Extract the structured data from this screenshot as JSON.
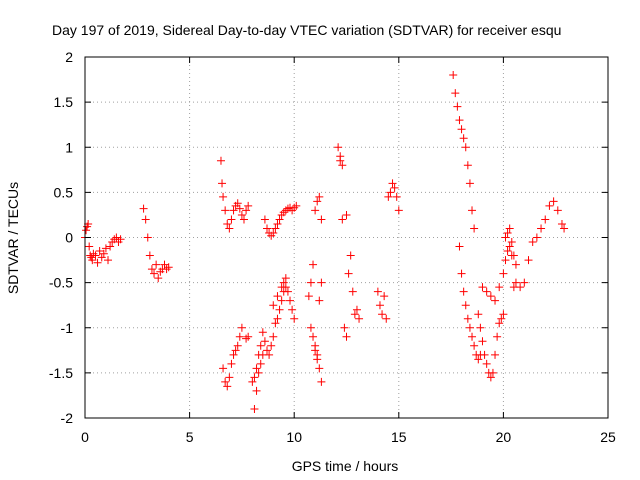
{
  "chart_data": {
    "type": "scatter",
    "title": "Day 197 of 2019, Sidereal Day-to-day VTEC variation (SDTVAR) for receiver esqu",
    "xlabel": "GPS time / hours",
    "ylabel": "SDTVAR / TECUs",
    "xlim": [
      0,
      25
    ],
    "ylim": [
      -2,
      2
    ],
    "xticks": [
      0,
      5,
      10,
      15,
      20,
      25
    ],
    "yticks": [
      -2,
      -1.5,
      -1,
      -0.5,
      0,
      0.5,
      1,
      1.5,
      2
    ],
    "xtick_labels": [
      "0",
      "5",
      "10",
      "15",
      "20",
      "25"
    ],
    "ytick_labels": [
      "-2",
      "-1.5",
      "-1",
      "-0.5",
      "0",
      "0.5",
      "1",
      "1.5",
      "2"
    ],
    "grid": true,
    "marker": "+",
    "color": "#ff0000",
    "series": [
      {
        "name": "SDTVAR",
        "x": [
          0.0,
          0.05,
          0.1,
          0.15,
          0.2,
          0.25,
          0.3,
          0.35,
          0.4,
          0.5,
          0.6,
          0.7,
          0.8,
          0.9,
          1.0,
          1.1,
          1.2,
          1.3,
          1.4,
          1.5,
          1.6,
          1.7,
          2.8,
          2.9,
          3.0,
          3.1,
          3.2,
          3.3,
          3.4,
          3.5,
          3.6,
          3.7,
          3.8,
          3.9,
          4.0,
          6.5,
          6.55,
          6.6,
          6.7,
          6.8,
          6.9,
          7.0,
          7.1,
          7.2,
          7.3,
          7.4,
          7.5,
          7.6,
          7.7,
          7.8,
          6.6,
          6.7,
          6.8,
          6.9,
          7.0,
          7.1,
          7.2,
          7.3,
          7.4,
          7.5,
          7.7,
          7.8,
          8.1,
          8.2,
          8.3,
          8.4,
          8.5,
          8.6,
          8.7,
          8.8,
          8.9,
          9.0,
          9.1,
          9.2,
          9.3,
          9.4,
          9.5,
          9.6,
          9.7,
          9.8,
          9.9,
          10.0,
          10.1,
          8.0,
          8.1,
          8.2,
          8.3,
          8.4,
          8.5,
          8.6,
          8.7,
          8.8,
          8.9,
          9.0,
          9.1,
          9.2,
          9.3,
          9.4,
          9.5,
          9.6,
          9.7,
          9.8,
          9.9,
          10.0,
          9.0,
          9.2,
          9.4,
          9.5,
          9.6,
          10.7,
          10.8,
          10.9,
          11.0,
          11.1,
          11.2,
          11.3,
          11.0,
          11.1,
          11.2,
          11.3,
          10.8,
          10.9,
          11.0,
          11.1,
          11.2,
          11.3,
          12.1,
          12.2,
          12.3,
          12.4,
          12.5,
          12.6,
          12.7,
          12.8,
          12.9,
          13.0,
          13.1,
          12.2,
          12.3,
          12.5,
          14.0,
          14.1,
          14.2,
          14.3,
          14.4,
          14.5,
          14.6,
          14.7,
          14.8,
          14.9,
          15.0,
          17.6,
          17.7,
          17.8,
          17.9,
          18.0,
          18.1,
          18.2,
          18.3,
          18.4,
          18.5,
          18.6,
          18.8,
          18.9,
          19.0,
          19.1,
          19.2,
          19.3,
          19.4,
          19.5,
          19.6,
          19.7,
          19.8,
          19.9,
          20.0,
          17.9,
          18.0,
          18.1,
          18.2,
          18.3,
          18.4,
          18.5,
          18.6,
          18.7,
          18.8,
          18.9,
          19.0,
          19.2,
          19.4,
          19.6,
          19.8,
          20.0,
          20.1,
          20.2,
          20.3,
          20.4,
          20.5,
          20.6,
          20.8,
          21.0,
          21.2,
          21.4,
          21.6,
          21.8,
          22.0,
          22.2,
          22.4,
          22.6,
          22.8,
          22.9,
          20.1,
          20.2,
          20.3,
          20.4,
          20.5,
          20.6
        ],
        "y": [
          0.0,
          0.08,
          0.12,
          0.15,
          -0.1,
          -0.2,
          -0.22,
          -0.25,
          -0.18,
          -0.2,
          -0.28,
          -0.15,
          -0.22,
          -0.18,
          -0.12,
          -0.25,
          -0.1,
          -0.05,
          -0.02,
          0.0,
          -0.05,
          -0.02,
          0.32,
          0.2,
          0.0,
          -0.2,
          -0.35,
          -0.4,
          -0.3,
          -0.45,
          -0.38,
          -0.35,
          -0.3,
          -0.35,
          -0.33,
          0.85,
          0.6,
          0.45,
          0.3,
          0.15,
          0.1,
          0.2,
          0.3,
          0.35,
          0.38,
          0.32,
          0.25,
          0.2,
          0.3,
          0.35,
          -1.45,
          -1.6,
          -1.65,
          -1.55,
          -1.4,
          -1.3,
          -1.25,
          -1.2,
          -1.1,
          -1.0,
          -1.12,
          -1.1,
          -1.9,
          -1.7,
          -1.5,
          -1.4,
          -1.3,
          0.2,
          0.1,
          0.05,
          0.02,
          0.05,
          0.1,
          0.15,
          0.2,
          0.25,
          0.28,
          0.3,
          0.32,
          0.33,
          0.3,
          0.33,
          0.35,
          -1.6,
          -1.55,
          -1.45,
          -1.3,
          -1.2,
          -1.05,
          -1.15,
          -1.25,
          -1.3,
          -1.2,
          -1.1,
          -0.95,
          -0.9,
          -0.8,
          -0.7,
          -0.6,
          -0.55,
          -0.6,
          -0.7,
          -0.8,
          -0.9,
          -0.75,
          -0.65,
          -0.55,
          -0.5,
          -0.45,
          -0.65,
          -0.5,
          -0.3,
          0.3,
          0.4,
          0.45,
          0.2,
          -1.2,
          -1.3,
          -1.45,
          -1.6,
          -1.0,
          -1.1,
          -1.25,
          -1.35,
          -0.7,
          -0.5,
          1.0,
          0.85,
          0.8,
          -1.0,
          -1.1,
          -0.4,
          -0.2,
          -0.6,
          -0.85,
          -0.8,
          -0.9,
          0.9,
          0.2,
          0.25,
          -0.6,
          -0.75,
          -0.85,
          -0.65,
          -0.9,
          0.45,
          0.5,
          0.6,
          0.55,
          0.45,
          0.3,
          1.8,
          1.6,
          1.45,
          1.3,
          1.2,
          1.1,
          1.0,
          0.8,
          0.6,
          0.3,
          0.1,
          -0.85,
          -1.0,
          -1.15,
          -1.3,
          -1.4,
          -1.5,
          -1.55,
          -1.5,
          -1.3,
          -1.1,
          -0.95,
          -0.9,
          -0.85,
          -0.1,
          -0.4,
          -0.6,
          -0.75,
          -0.9,
          -1.0,
          -1.1,
          -1.2,
          -1.3,
          -1.35,
          -1.3,
          -0.55,
          -0.6,
          -0.65,
          -0.7,
          -0.55,
          -0.4,
          -0.25,
          -0.15,
          -0.1,
          -0.2,
          -0.55,
          -0.5,
          -0.55,
          -0.5,
          -0.25,
          -0.05,
          0.0,
          0.1,
          0.2,
          0.35,
          0.4,
          0.3,
          0.15,
          0.1,
          0.0,
          0.05,
          0.1,
          -0.05,
          -0.2,
          -0.3
        ]
      }
    ]
  }
}
